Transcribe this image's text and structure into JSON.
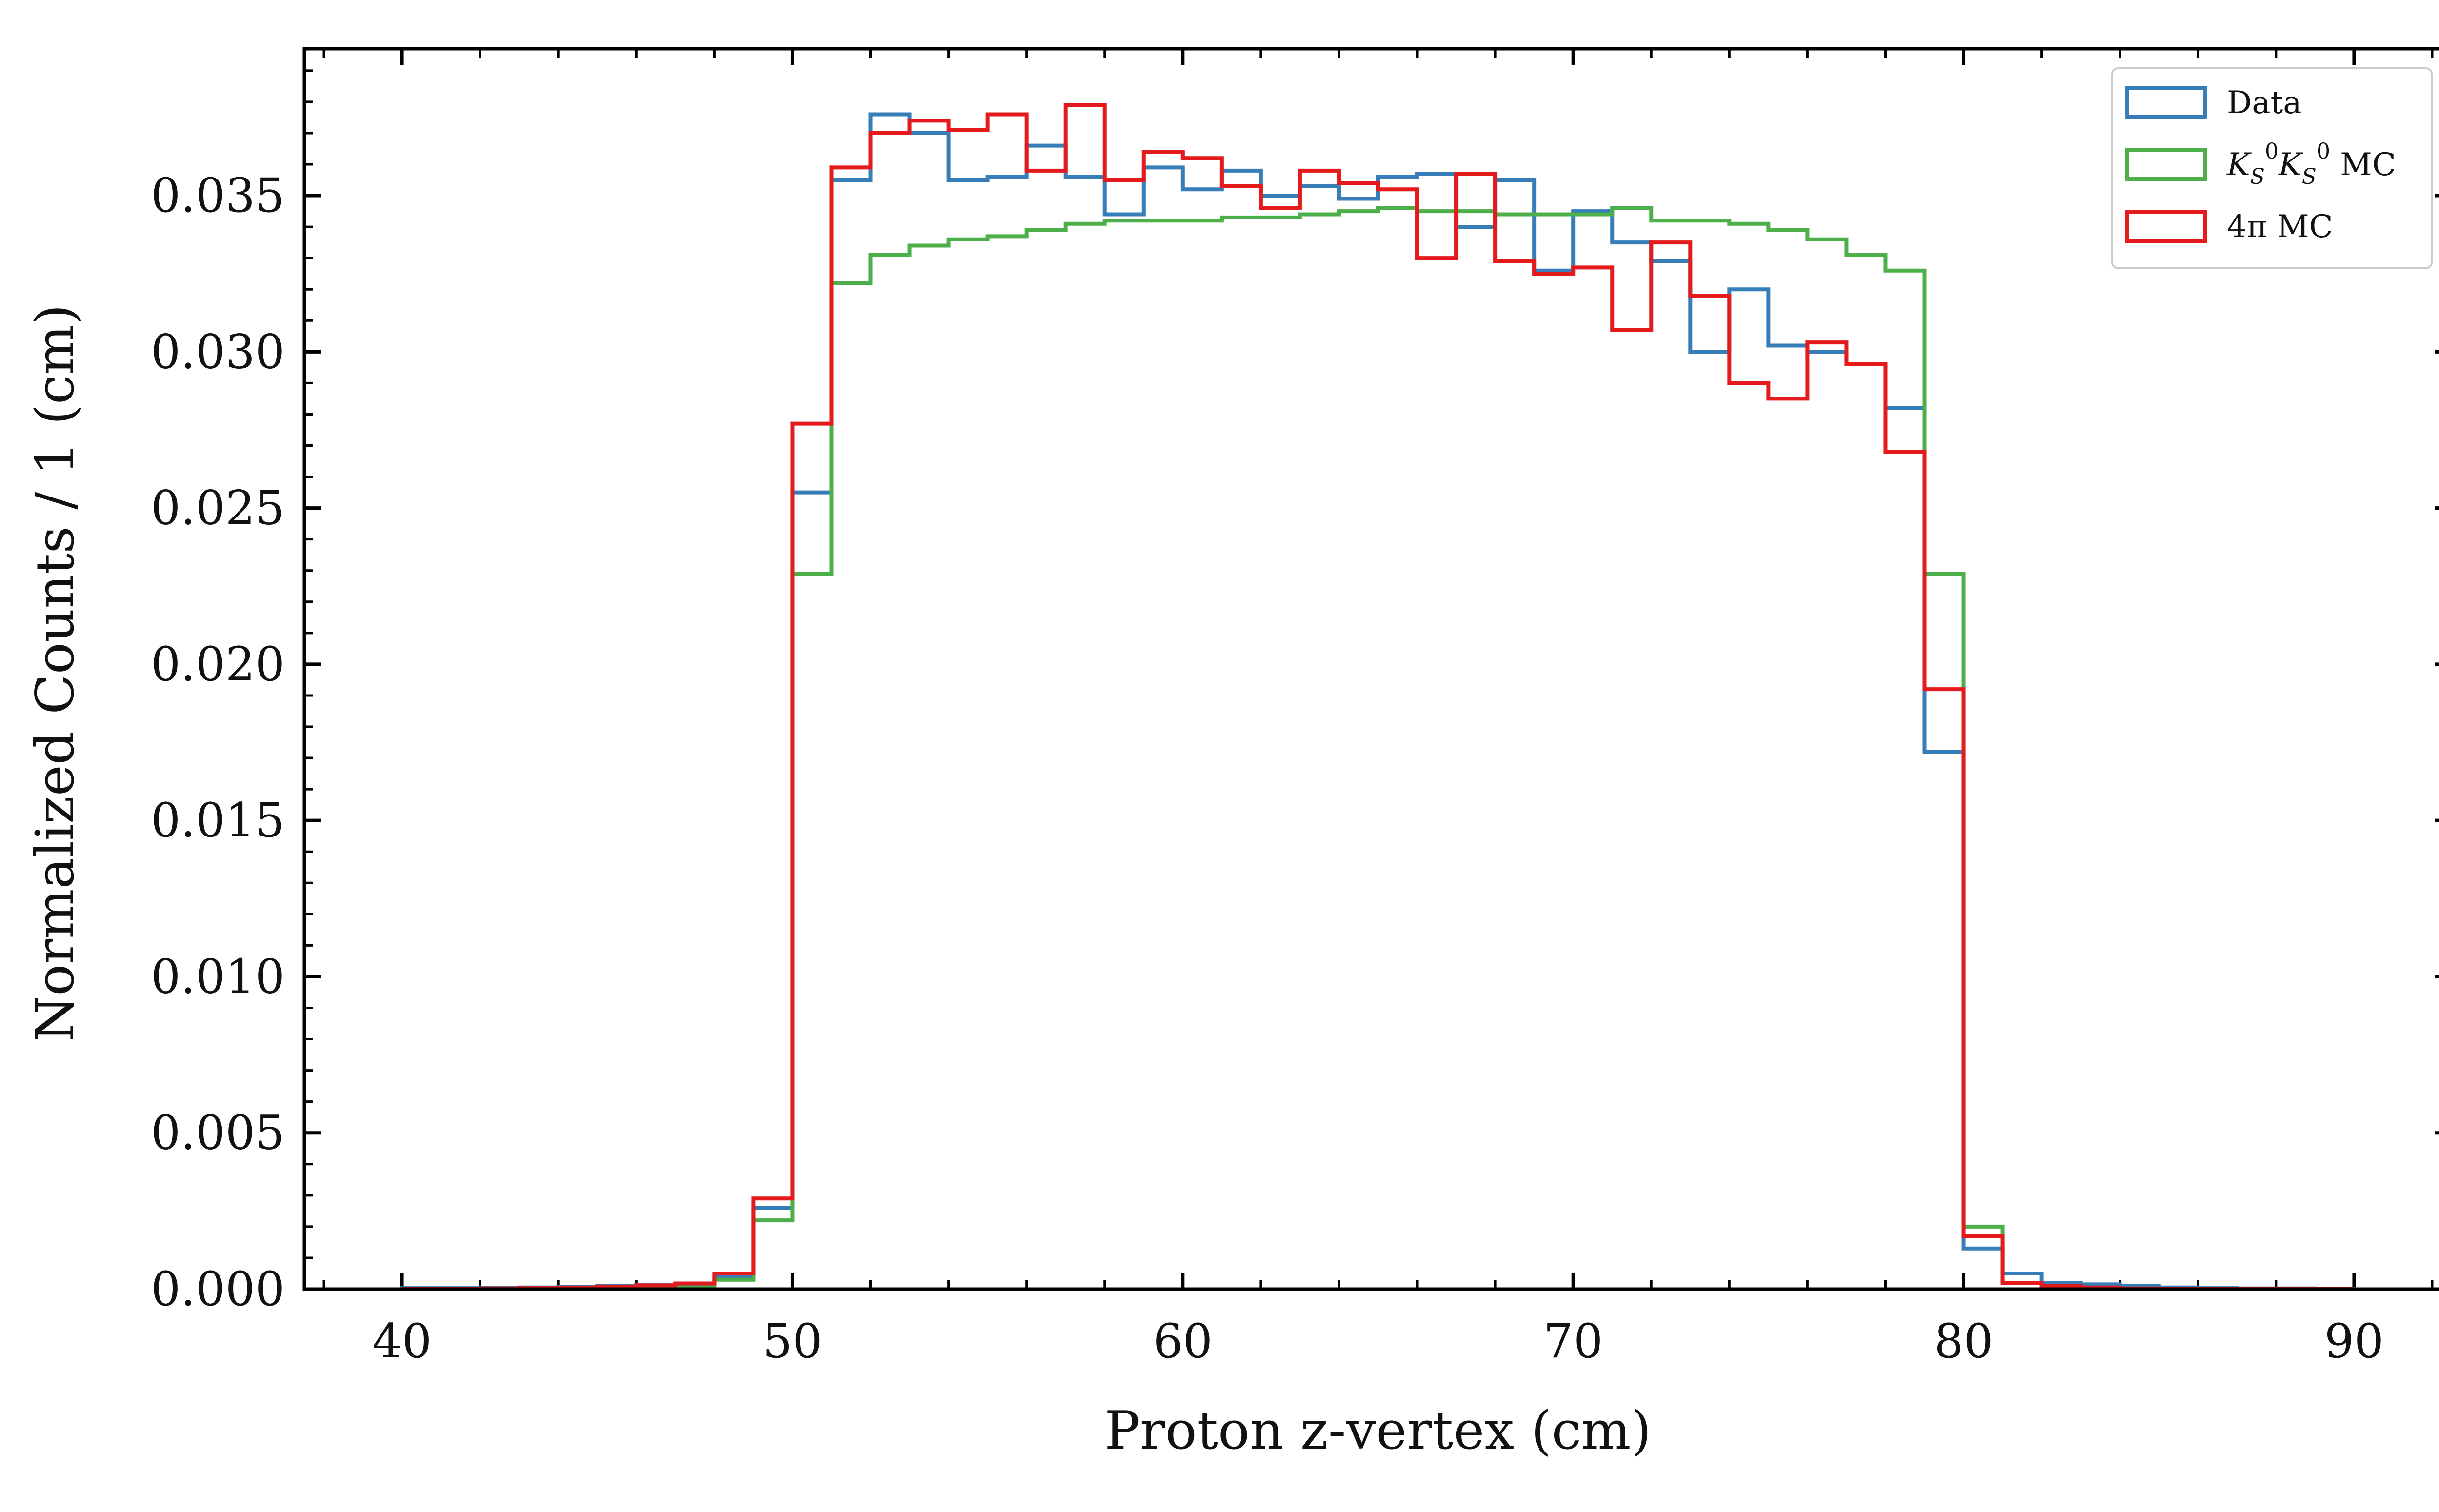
{
  "chart_data": {
    "type": "histogram-step",
    "xlabel": "Proton z-vertex (cm)",
    "ylabel": "Normalized Counts / 1 (cm)",
    "xlim": [
      37.5,
      92.5
    ],
    "ylim": [
      0.0,
      0.0397
    ],
    "x_ticks": [
      40,
      50,
      60,
      70,
      80,
      90
    ],
    "x_tick_labels": [
      "40",
      "50",
      "60",
      "70",
      "80",
      "90"
    ],
    "y_ticks": [
      0.0,
      0.005,
      0.01,
      0.015,
      0.02,
      0.025,
      0.03,
      0.035
    ],
    "y_tick_labels": [
      "0.000",
      "0.005",
      "0.010",
      "0.015",
      "0.020",
      "0.025",
      "0.030",
      "0.035"
    ],
    "grid": false,
    "legend_position": "top-right",
    "bin_edges": [
      40,
      41,
      42,
      43,
      44,
      45,
      46,
      47,
      48,
      49,
      50,
      51,
      52,
      53,
      54,
      55,
      56,
      57,
      58,
      59,
      60,
      61,
      62,
      63,
      64,
      65,
      66,
      67,
      68,
      69,
      70,
      71,
      72,
      73,
      74,
      75,
      76,
      77,
      78,
      79,
      80,
      81,
      82,
      83,
      84,
      85,
      86,
      87,
      88,
      89,
      90
    ],
    "series": [
      {
        "name": "Data",
        "legend_text": [
          "",
          "Data"
        ],
        "color": "#377eb8",
        "values": [
          3e-05,
          3e-05,
          4e-05,
          5e-05,
          7e-05,
          0.0001,
          0.00013,
          0.00017,
          0.0004,
          0.0026,
          0.0255,
          0.0355,
          0.0376,
          0.037,
          0.0355,
          0.0356,
          0.0366,
          0.0356,
          0.0344,
          0.0359,
          0.0352,
          0.0358,
          0.035,
          0.0353,
          0.0349,
          0.0356,
          0.0357,
          0.034,
          0.0355,
          0.0326,
          0.0345,
          0.0335,
          0.0329,
          0.03,
          0.032,
          0.0302,
          0.03,
          0.0296,
          0.0282,
          0.0172,
          0.0013,
          0.0005,
          0.0002,
          0.00015,
          0.0001,
          5e-05,
          3e-05,
          2e-05,
          2e-05,
          1e-05
        ]
      },
      {
        "name": "K_S^0 K_S^0 MC",
        "legend_text": [
          "K",
          "S",
          "0",
          "K",
          "S",
          "0",
          " MC"
        ],
        "color": "#4daf4a",
        "values": [
          0.0,
          0.0,
          0.0,
          0.0,
          1e-05,
          2e-05,
          3e-05,
          5e-05,
          0.0003,
          0.0022,
          0.0229,
          0.0322,
          0.0331,
          0.0334,
          0.0336,
          0.0337,
          0.0339,
          0.0341,
          0.0342,
          0.0342,
          0.0342,
          0.0343,
          0.0343,
          0.0344,
          0.0345,
          0.0346,
          0.0345,
          0.0345,
          0.0344,
          0.0344,
          0.0344,
          0.0346,
          0.0342,
          0.0342,
          0.0341,
          0.0339,
          0.0336,
          0.0331,
          0.0326,
          0.0229,
          0.002,
          0.0002,
          5e-05,
          2e-05,
          1e-05,
          0.0,
          0.0,
          0.0,
          0.0,
          0.0
        ]
      },
      {
        "name": "4π MC",
        "legend_text": [
          "4π MC"
        ],
        "color": "#e41a1c",
        "values": [
          0.0,
          1e-05,
          2e-05,
          3e-05,
          5e-05,
          8e-05,
          0.00012,
          0.00018,
          0.0005,
          0.0029,
          0.0277,
          0.0359,
          0.037,
          0.0374,
          0.0371,
          0.0376,
          0.0358,
          0.0379,
          0.0355,
          0.0364,
          0.0362,
          0.0353,
          0.0346,
          0.0358,
          0.0354,
          0.0352,
          0.033,
          0.0357,
          0.0329,
          0.0325,
          0.0327,
          0.0307,
          0.0335,
          0.0318,
          0.029,
          0.0285,
          0.0303,
          0.0296,
          0.0268,
          0.0192,
          0.0017,
          0.0002,
          0.0001,
          5e-05,
          2e-05,
          1e-05,
          0.0,
          0.0,
          0.0,
          0.0
        ]
      }
    ]
  }
}
